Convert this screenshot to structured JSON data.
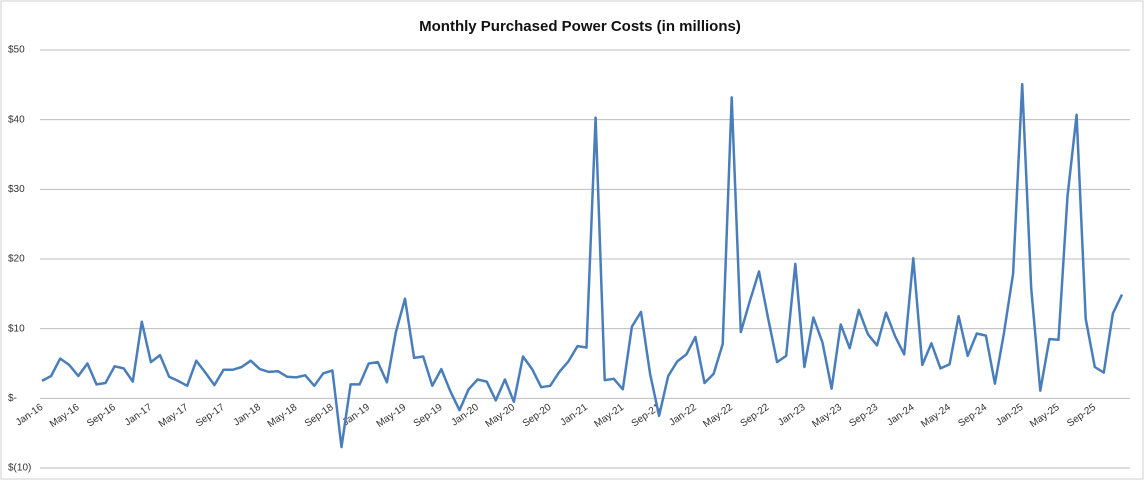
{
  "chart_data": {
    "type": "line",
    "title": "Monthly Purchased Power Costs (in millions)",
    "categories": [
      "Jan-16",
      null,
      null,
      null,
      "May-16",
      null,
      null,
      null,
      "Sep-16",
      null,
      null,
      null,
      "Jan-17",
      null,
      null,
      null,
      "May-17",
      null,
      null,
      null,
      "Sep-17",
      null,
      null,
      null,
      "Jan-18",
      null,
      null,
      null,
      "May-18",
      null,
      null,
      null,
      "Sep-18",
      null,
      null,
      null,
      "Jan-19",
      null,
      null,
      null,
      "May-19",
      null,
      null,
      null,
      "Sep-19",
      null,
      null,
      null,
      "Jan-20",
      null,
      null,
      null,
      "May-20",
      null,
      null,
      null,
      "Sep-20",
      null,
      null,
      null,
      "Jan-21",
      null,
      null,
      null,
      "May-21",
      null,
      null,
      null,
      "Sep-21",
      null,
      null,
      null,
      "Jan-22",
      null,
      null,
      null,
      "May-22",
      null,
      null,
      null,
      "Sep-22",
      null,
      null,
      null,
      "Jan-23",
      null,
      null,
      null,
      "May-23",
      null,
      null,
      null,
      "Sep-23",
      null,
      null,
      null,
      "Jan-24",
      null,
      null,
      null,
      "May-24",
      null,
      null,
      null,
      "Sep-24",
      null,
      null,
      null,
      "Jan-25",
      null,
      null,
      null,
      "May-25",
      null,
      null,
      null,
      "Sep-25",
      null,
      null,
      null
    ],
    "series": [
      {
        "name": "Monthly Purchased Power Costs",
        "color": "#4a7ebb",
        "values": [
          2.5,
          3.2,
          5.7,
          4.8,
          3.2,
          5.0,
          2.0,
          2.2,
          4.6,
          4.3,
          2.4,
          11.0,
          5.2,
          6.2,
          3.1,
          2.5,
          1.8,
          5.4,
          3.7,
          1.9,
          4.1,
          4.1,
          4.5,
          5.4,
          4.2,
          3.8,
          3.9,
          3.1,
          3.0,
          3.3,
          1.8,
          3.6,
          4.0,
          -7.0,
          2.0,
          2.0,
          5.0,
          5.2,
          2.3,
          9.5,
          14.3,
          5.8,
          6.0,
          1.8,
          4.2,
          1.0,
          -1.7,
          1.3,
          2.7,
          2.4,
          -0.3,
          2.7,
          -0.5,
          6.0,
          4.2,
          1.6,
          1.8,
          3.8,
          5.3,
          7.5,
          7.3,
          40.3,
          2.6,
          2.8,
          1.3,
          10.3,
          12.4,
          3.5,
          -2.5,
          3.2,
          5.3,
          6.3,
          8.8,
          2.2,
          3.5,
          7.8,
          43.2,
          9.5,
          14.0,
          18.2,
          11.5,
          5.2,
          6.1,
          19.3,
          4.5,
          11.6,
          8.0,
          1.4,
          10.6,
          7.2,
          12.7,
          9.2,
          7.6,
          12.3,
          8.9,
          6.3,
          20.1,
          4.8,
          7.9,
          4.3,
          4.9,
          11.8,
          6.1,
          9.3,
          9.0,
          2.1,
          9.4,
          17.9,
          45.1,
          15.8,
          1.1,
          8.5,
          8.4,
          29.0,
          40.7,
          11.4,
          4.5,
          3.7,
          12.2,
          14.9
        ]
      }
    ],
    "ylim": [
      -10,
      50
    ],
    "yticks": [
      {
        "value": -10,
        "label": "$(10)"
      },
      {
        "value": 0,
        "label": "$-"
      },
      {
        "value": 10,
        "label": "$10"
      },
      {
        "value": 20,
        "label": "$20"
      },
      {
        "value": 30,
        "label": "$30"
      },
      {
        "value": 40,
        "label": "$40"
      },
      {
        "value": 50,
        "label": "$50"
      }
    ],
    "grid": true
  }
}
